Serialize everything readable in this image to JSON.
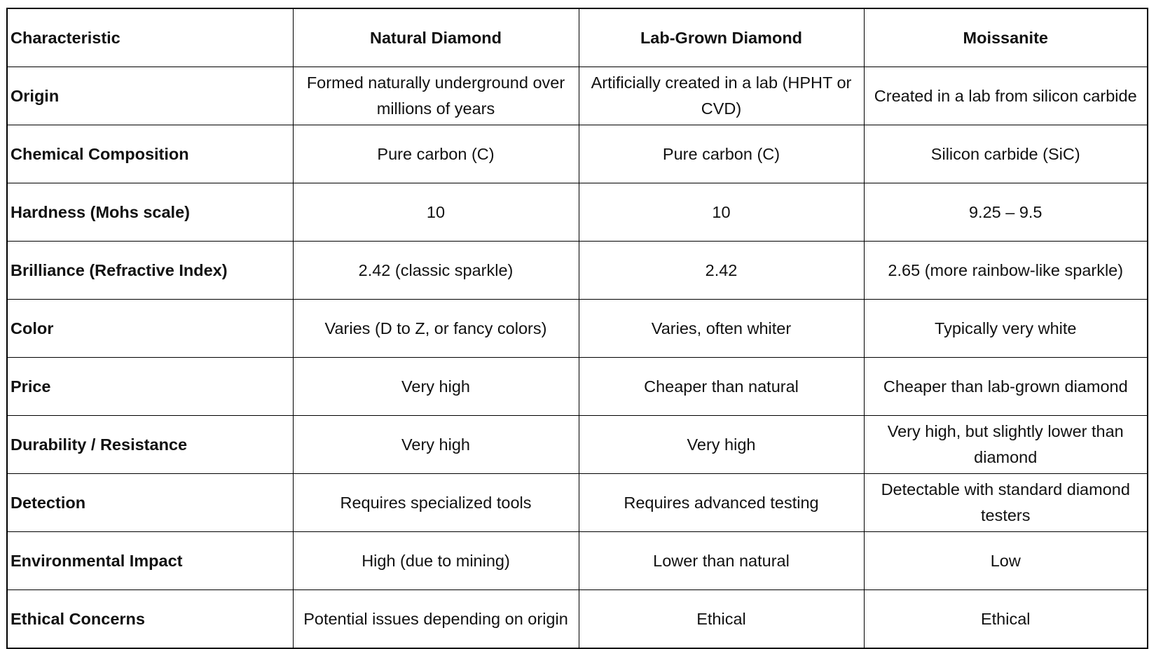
{
  "table": {
    "headers": [
      "Characteristic",
      "Natural Diamond",
      "Lab-Grown Diamond",
      "Moissanite"
    ],
    "rows": [
      [
        "Origin",
        "Formed naturally underground over millions of years",
        "Artificially created in a lab (HPHT or CVD)",
        "Created in a lab from silicon carbide"
      ],
      [
        "Chemical Composition",
        "Pure carbon (C)",
        "Pure carbon (C)",
        "Silicon carbide (SiC)"
      ],
      [
        "Hardness (Mohs scale)",
        "10",
        "10",
        "9.25 – 9.5"
      ],
      [
        "Brilliance (Refractive Index)",
        "2.42 (classic sparkle)",
        "2.42",
        "2.65 (more rainbow-like sparkle)"
      ],
      [
        "Color",
        "Varies (D to Z, or fancy colors)",
        "Varies, often whiter",
        "Typically very white"
      ],
      [
        "Price",
        "Very high",
        "Cheaper than natural",
        "Cheaper than lab-grown diamond"
      ],
      [
        "Durability / Resistance",
        "Very high",
        "Very high",
        "Very high, but slightly lower than diamond"
      ],
      [
        "Detection",
        "Requires specialized tools",
        "Requires advanced testing",
        "Detectable with standard diamond testers"
      ],
      [
        "Environmental Impact",
        "High (due to mining)",
        "Lower than natural",
        "Low"
      ],
      [
        "Ethical Concerns",
        "Potential issues depending on origin",
        "Ethical",
        "Ethical"
      ]
    ]
  }
}
